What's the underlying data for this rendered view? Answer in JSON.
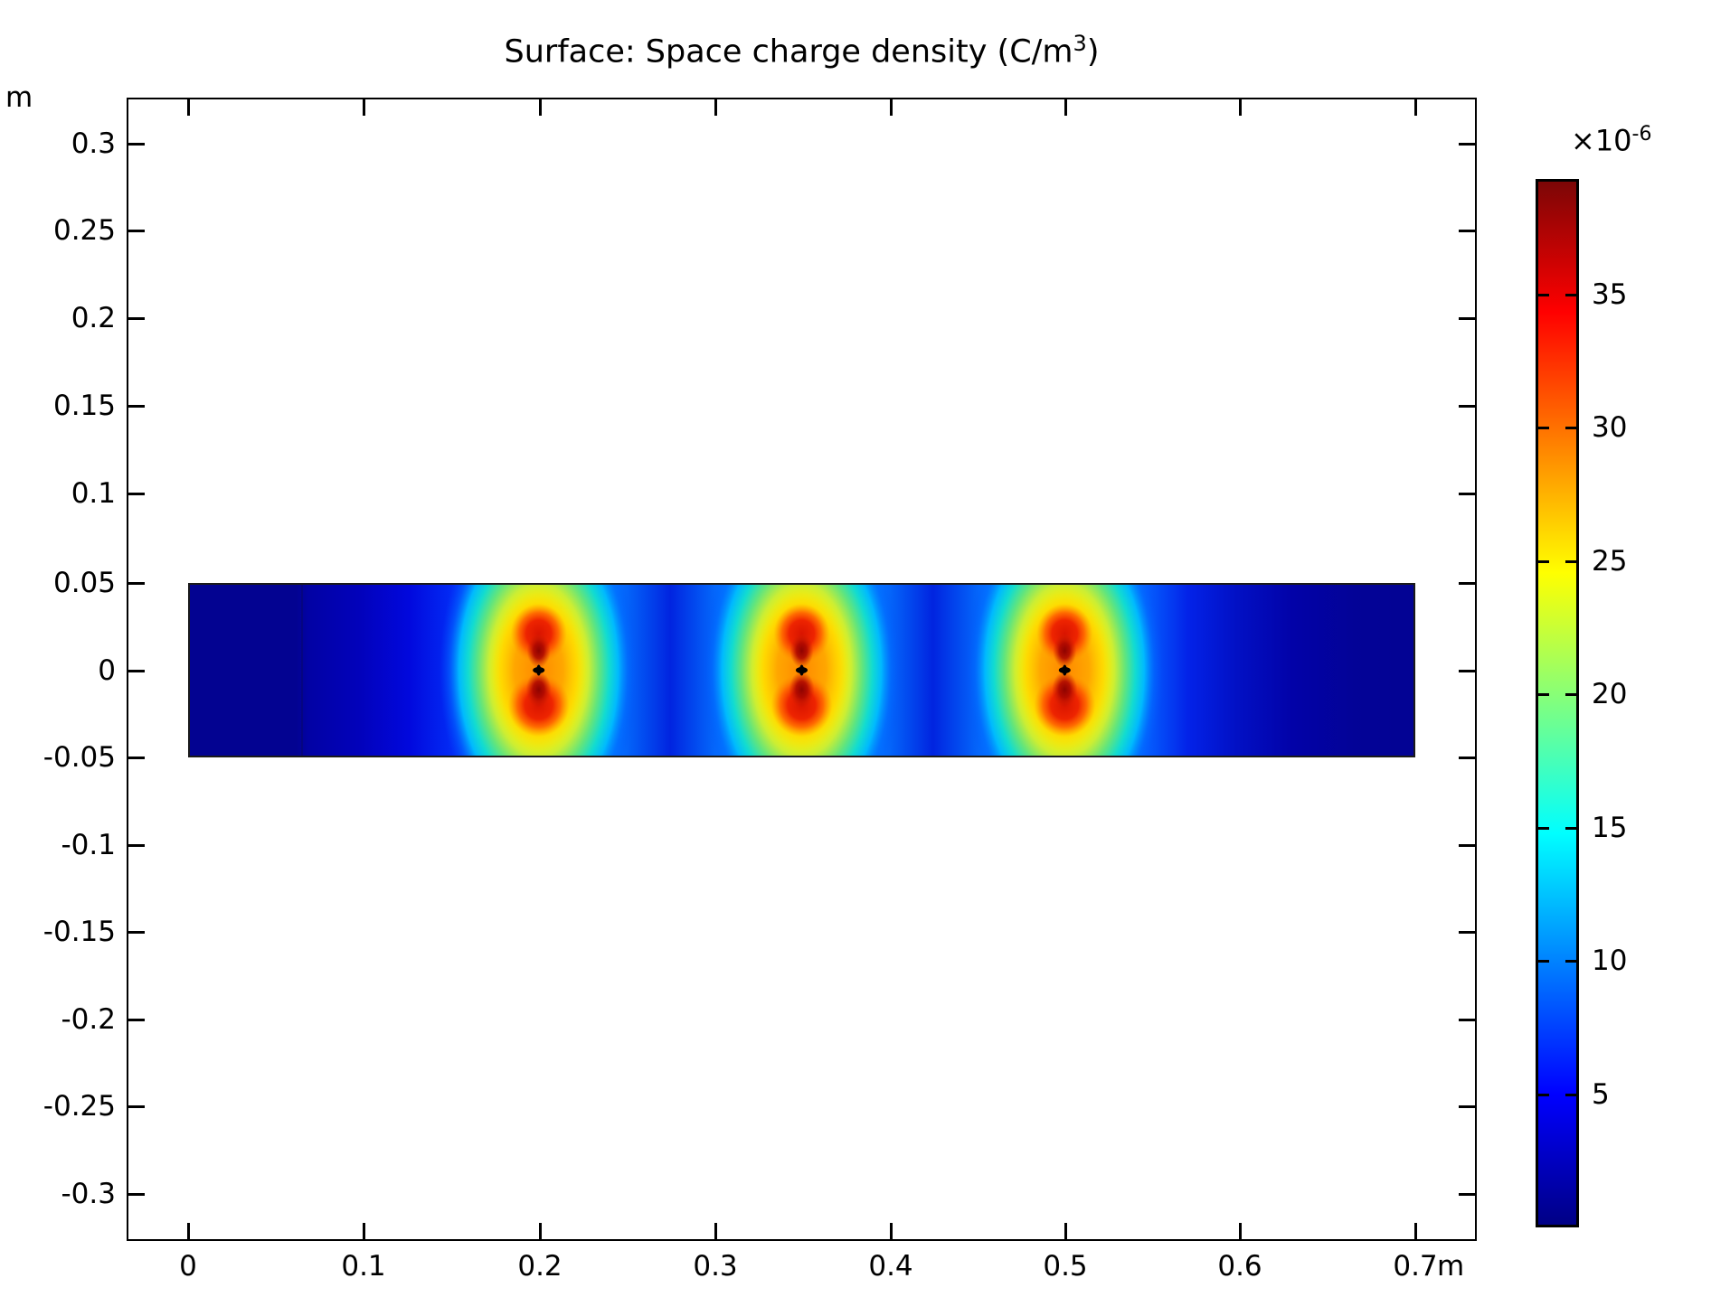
{
  "header": {
    "title_prefix": "Surface: Space charge density (C/m",
    "title_sup": "3",
    "title_suffix": ")"
  },
  "axes": {
    "y": {
      "unit": "m",
      "ticks": [
        "0.3",
        "0.25",
        "0.2",
        "0.15",
        "0.1",
        "0.05",
        "0",
        "-0.05",
        "-0.1",
        "-0.15",
        "-0.2",
        "-0.25",
        "-0.3"
      ]
    },
    "x": {
      "unit": "m",
      "ticks": [
        "0",
        "0.1",
        "0.2",
        "0.3",
        "0.4",
        "0.5",
        "0.6",
        "0.7"
      ]
    }
  },
  "colorbar": {
    "multiplier_base": "×10",
    "multiplier_exp": "-6",
    "ticks": [
      "35",
      "30",
      "25",
      "20",
      "15",
      "10",
      "5"
    ]
  },
  "chart_data": {
    "type": "heatmap",
    "title": "Surface: Space charge density (C/m³)",
    "x_unit": "m",
    "y_unit": "m",
    "x_tick_values": [
      0,
      0.1,
      0.2,
      0.3,
      0.4,
      0.5,
      0.6,
      0.7
    ],
    "y_tick_values": [
      0.3,
      0.25,
      0.2,
      0.15,
      0.1,
      0.05,
      0,
      -0.05,
      -0.1,
      -0.15,
      -0.2,
      -0.25,
      -0.3
    ],
    "x_range_visible": [
      -0.035,
      0.735
    ],
    "y_range_visible": [
      -0.327,
      0.326
    ],
    "domain_rect": {
      "x": [
        0,
        0.7
      ],
      "y": [
        -0.05,
        0.05
      ]
    },
    "hotspots": [
      {
        "x": 0.2,
        "y": 0
      },
      {
        "x": 0.35,
        "y": 0
      },
      {
        "x": 0.5,
        "y": 0
      }
    ],
    "low_value_dips_x": [
      0.275,
      0.425
    ],
    "inner_boundary_x": 0.065,
    "colorbar": {
      "scale_multiplier": "×10⁻⁶",
      "tick_values": [
        35,
        30,
        25,
        20,
        15,
        10,
        5
      ],
      "value_range": [
        0.08,
        39.3
      ],
      "unit": "C/m³"
    },
    "colormap": {
      "name": "rainbow-jet",
      "stops": [
        {
          "pos": 0.0,
          "color": "#000085"
        },
        {
          "pos": 0.125,
          "color": "#0000ff"
        },
        {
          "pos": 0.375,
          "color": "#00ffff"
        },
        {
          "pos": 0.625,
          "color": "#ffff00"
        },
        {
          "pos": 0.875,
          "color": "#ff0000"
        },
        {
          "pos": 1.0,
          "color": "#7c0606"
        }
      ]
    },
    "grid": false,
    "legend": "colorbar-right",
    "value_description": "Space charge density field: dark blue background strip (0 to 0.7 m wide, -0.05 to 0.05 m tall) with three vertical dipole-shaped hot spots (red lobes above/below a black pinch point) at x = 0.2, 0.35, 0.5 m, y = 0; peak ≈ 39×10⁻⁶ C/m³"
  }
}
